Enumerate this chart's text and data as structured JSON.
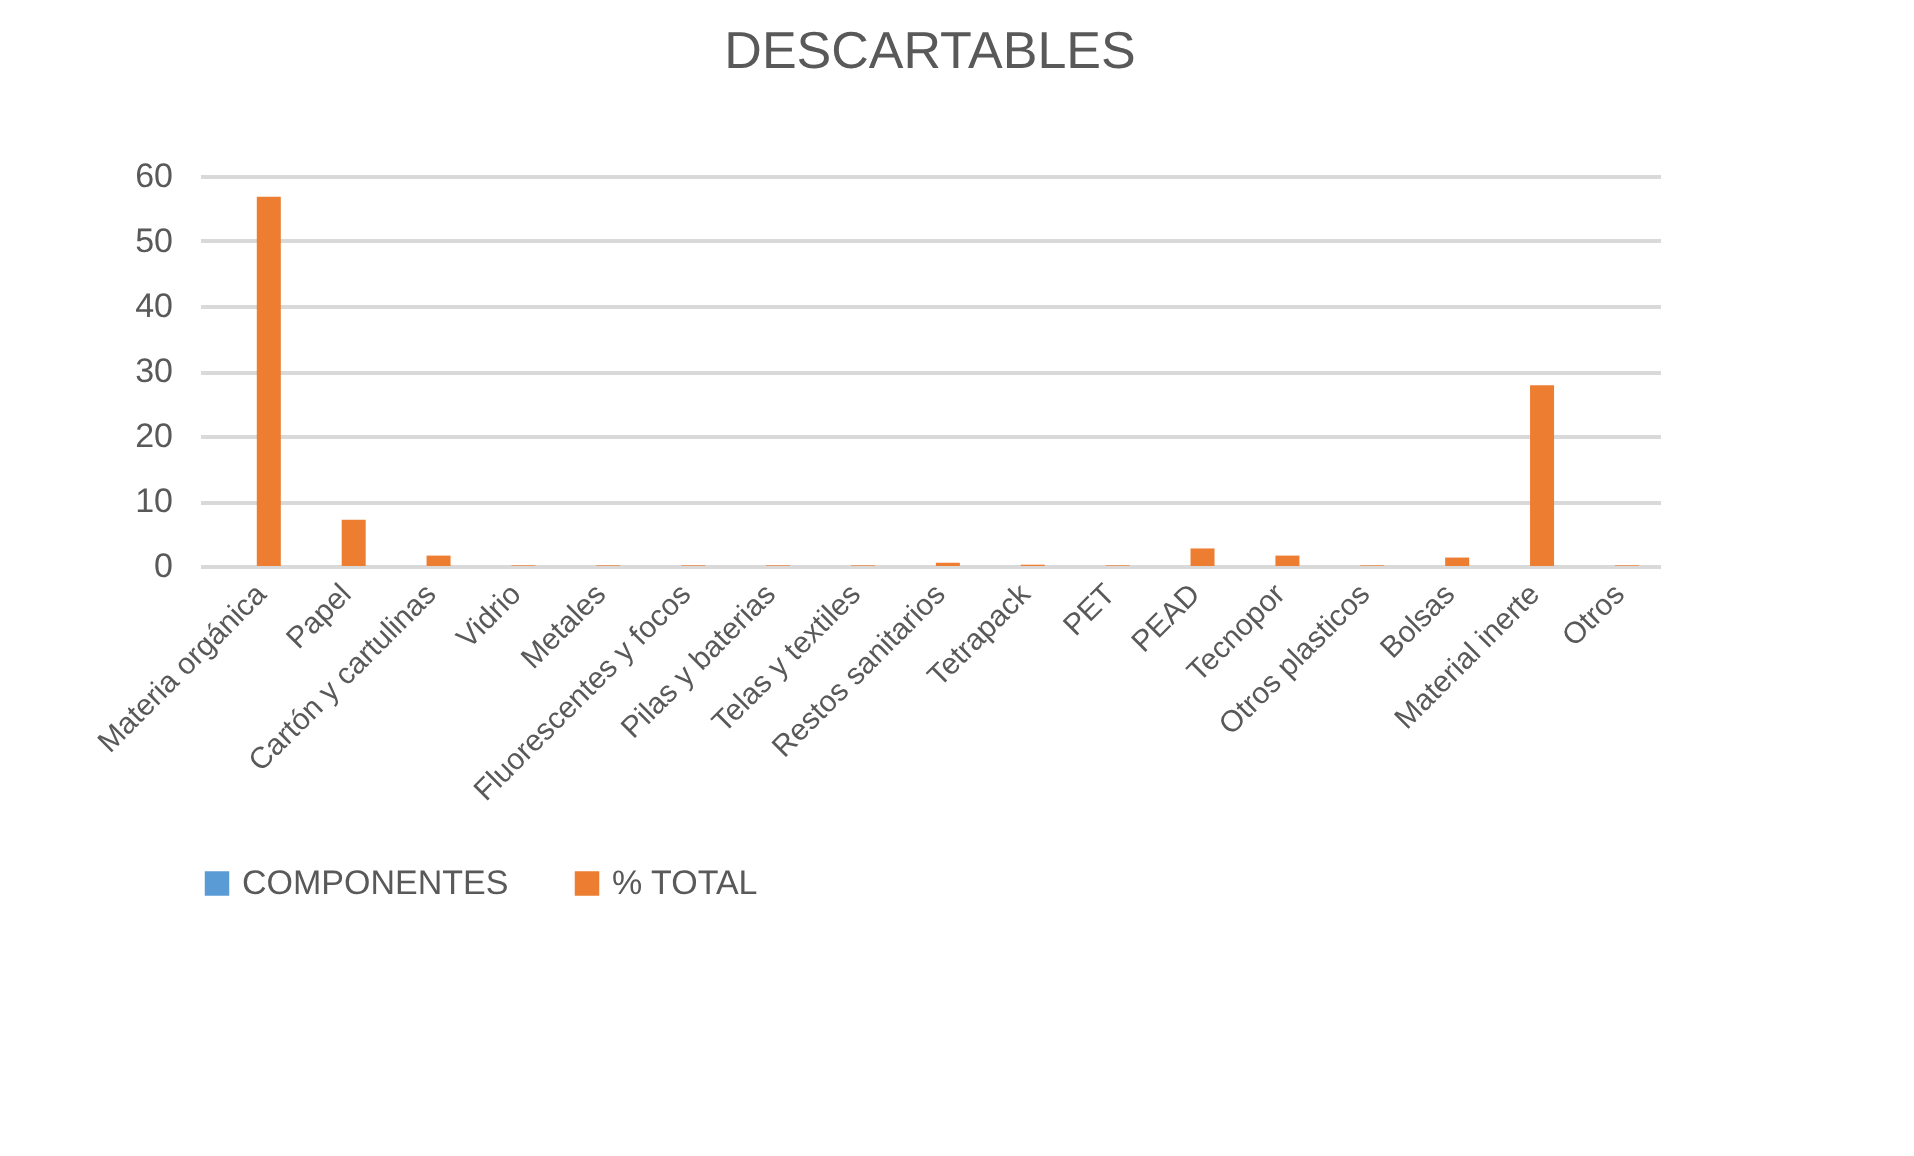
{
  "chart_data": {
    "type": "bar",
    "title": "DESCARTABLES",
    "categories": [
      "Materia orgánica",
      "Papel",
      "Cartón y cartulinas",
      "Vidrio",
      "Metales",
      "Fluorescentes y focos",
      "Pilas y baterias",
      "Telas y textiles",
      "Restos sanitarios",
      "Tetrapack",
      "PET",
      "PEAD",
      "Tecnopor",
      "Otros plasticos",
      "Bolsas",
      "Material inerte",
      "Otros"
    ],
    "series": [
      {
        "name": "COMPONENTES",
        "color": "#5b9bd5",
        "values": [
          null,
          null,
          null,
          null,
          null,
          null,
          null,
          null,
          null,
          null,
          null,
          null,
          null,
          null,
          null,
          null,
          null
        ]
      },
      {
        "name": "% TOTAL",
        "color": "#ed7d31",
        "values": [
          56.8,
          7.1,
          1.6,
          0.1,
          0.1,
          0.1,
          0.1,
          0.1,
          0.5,
          0.2,
          0.1,
          2.7,
          1.6,
          0.1,
          1.3,
          27.8,
          0.1
        ]
      }
    ],
    "ylim": [
      0,
      60
    ],
    "yticks": [
      0,
      10,
      20,
      30,
      40,
      50,
      60
    ],
    "grid": "y",
    "legend": "bottom"
  }
}
